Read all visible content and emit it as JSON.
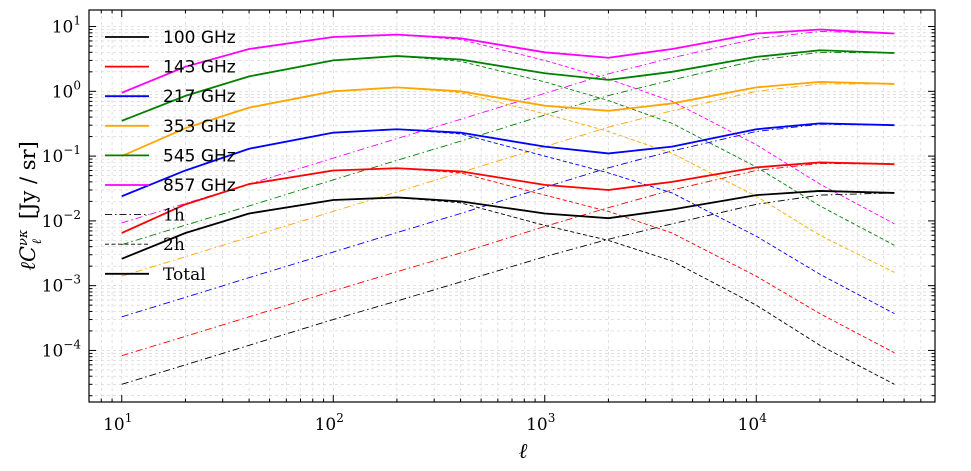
{
  "chart_data": {
    "type": "line",
    "xlabel": "ℓ",
    "ylabel_main": "ℓC",
    "ylabel_sub": "ℓ",
    "ylabel_sup": "νκ",
    "ylabel_unit": "[Jy / sr]",
    "xscale": "log",
    "yscale": "log",
    "xlim": [
      7,
      70000
    ],
    "ylim": [
      1.6e-05,
      18
    ],
    "grid": true,
    "legend_position": "top-left",
    "x_ticks": [
      {
        "value": 10,
        "base": "10",
        "exp": "1"
      },
      {
        "value": 100,
        "base": "10",
        "exp": "2"
      },
      {
        "value": 1000,
        "base": "10",
        "exp": "3"
      },
      {
        "value": 10000,
        "base": "10",
        "exp": "4"
      }
    ],
    "y_ticks": [
      {
        "value": 0.0001,
        "base": "10",
        "exp": "−4"
      },
      {
        "value": 0.001,
        "base": "10",
        "exp": "−3"
      },
      {
        "value": 0.01,
        "base": "10",
        "exp": "−2"
      },
      {
        "value": 0.1,
        "base": "10",
        "exp": "−1"
      },
      {
        "value": 1,
        "base": "10",
        "exp": "0"
      },
      {
        "value": 10,
        "base": "10",
        "exp": "1"
      }
    ],
    "x": [
      10,
      20,
      40,
      100,
      200,
      400,
      1000,
      2000,
      4000,
      10000,
      20000,
      45000
    ],
    "series": [
      {
        "name": "100 GHz",
        "color": "#000000",
        "total": [
          0.0026,
          0.0065,
          0.013,
          0.021,
          0.023,
          0.02,
          0.013,
          0.011,
          0.015,
          0.025,
          0.029,
          0.027
        ],
        "one_halo": [
          3e-05,
          6e-05,
          0.00012,
          0.0003,
          0.00058,
          0.00114,
          0.0028,
          0.0052,
          0.009,
          0.018,
          0.025,
          0.027
        ],
        "two_halo": [
          0.0026,
          0.0065,
          0.013,
          0.021,
          0.023,
          0.019,
          0.0085,
          0.005,
          0.0024,
          0.0005,
          0.00012,
          3e-05
        ]
      },
      {
        "name": "143 GHz",
        "color": "#ff0000",
        "total": [
          0.0065,
          0.018,
          0.037,
          0.06,
          0.065,
          0.058,
          0.036,
          0.03,
          0.04,
          0.067,
          0.08,
          0.075
        ],
        "one_halo": [
          8.3e-05,
          0.000165,
          0.00033,
          0.00083,
          0.00164,
          0.0032,
          0.0082,
          0.016,
          0.03,
          0.06,
          0.077,
          0.075
        ],
        "two_halo": [
          0.0065,
          0.018,
          0.037,
          0.06,
          0.065,
          0.055,
          0.025,
          0.014,
          0.0065,
          0.0014,
          0.00037,
          9.2e-05
        ]
      },
      {
        "name": "217 GHz",
        "color": "#0000ff",
        "total": [
          0.024,
          0.06,
          0.13,
          0.23,
          0.26,
          0.23,
          0.14,
          0.11,
          0.14,
          0.26,
          0.32,
          0.3
        ],
        "one_halo": [
          0.00033,
          0.00066,
          0.00133,
          0.0033,
          0.0066,
          0.013,
          0.033,
          0.066,
          0.12,
          0.24,
          0.31,
          0.3
        ],
        "two_halo": [
          0.024,
          0.06,
          0.13,
          0.23,
          0.26,
          0.22,
          0.1,
          0.055,
          0.027,
          0.0058,
          0.0015,
          0.00037
        ]
      },
      {
        "name": "353 GHz",
        "color": "#ffa500",
        "total": [
          0.1,
          0.27,
          0.56,
          1.0,
          1.15,
          1.0,
          0.6,
          0.5,
          0.65,
          1.15,
          1.4,
          1.3
        ],
        "one_halo": [
          0.0014,
          0.0028,
          0.0056,
          0.014,
          0.028,
          0.056,
          0.14,
          0.28,
          0.5,
          1.0,
          1.3,
          1.3
        ],
        "two_halo": [
          0.1,
          0.27,
          0.56,
          1.0,
          1.15,
          0.95,
          0.45,
          0.24,
          0.11,
          0.024,
          0.006,
          0.0016
        ]
      },
      {
        "name": "545 GHz",
        "color": "#008000",
        "total": [
          0.35,
          0.85,
          1.7,
          3.0,
          3.5,
          3.1,
          1.9,
          1.5,
          2.0,
          3.4,
          4.3,
          3.9
        ],
        "one_halo": [
          0.0043,
          0.0086,
          0.017,
          0.043,
          0.086,
          0.17,
          0.43,
          0.86,
          1.5,
          3.0,
          4.0,
          3.9
        ],
        "two_halo": [
          0.35,
          0.85,
          1.7,
          3.0,
          3.5,
          2.9,
          1.4,
          0.72,
          0.32,
          0.068,
          0.017,
          0.0042
        ]
      },
      {
        "name": "857 GHz",
        "color": "#ff00ff",
        "total": [
          0.95,
          2.4,
          4.5,
          6.9,
          7.5,
          6.6,
          4.0,
          3.3,
          4.5,
          7.8,
          9.0,
          7.8
        ],
        "one_halo": [
          0.0093,
          0.0186,
          0.037,
          0.093,
          0.186,
          0.37,
          0.93,
          1.86,
          3.3,
          6.5,
          8.4,
          7.8
        ],
        "two_halo": [
          0.95,
          2.4,
          4.5,
          6.9,
          7.5,
          6.3,
          3.0,
          1.55,
          0.7,
          0.15,
          0.037,
          0.009
        ]
      }
    ],
    "legend_extra": [
      {
        "key": "one_halo",
        "label": "1h",
        "dash": "7 3 1.5 3"
      },
      {
        "key": "two_halo",
        "label": "2h",
        "dash": "4 2.5"
      },
      {
        "key": "total",
        "label": "Total",
        "dash": ""
      }
    ]
  }
}
